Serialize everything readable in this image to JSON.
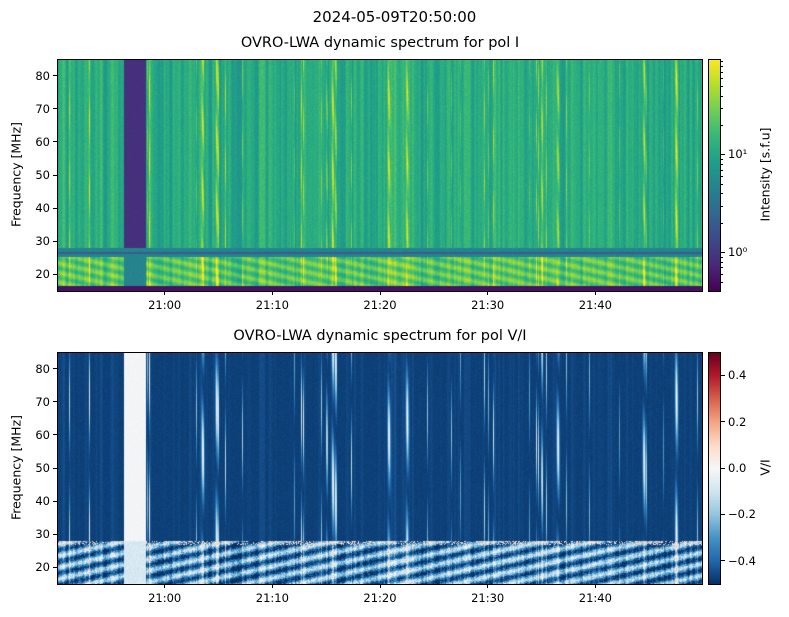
{
  "suptitle": "2024-05-09T20:50:00",
  "chart_data": [
    {
      "type": "heatmap",
      "title": "OVRO-LWA dynamic spectrum for pol I",
      "xlabel": "",
      "ylabel": "Frequency [MHz]",
      "x_range_minutes": [
        0,
        60
      ],
      "x_start": "20:50",
      "x_ticks": [
        {
          "value": 10,
          "label": "21:00"
        },
        {
          "value": 20,
          "label": "21:10"
        },
        {
          "value": 30,
          "label": "21:20"
        },
        {
          "value": 40,
          "label": "21:30"
        },
        {
          "value": 50,
          "label": "21:40"
        }
      ],
      "ylim": [
        15,
        85
      ],
      "y_ticks": [
        20,
        30,
        40,
        50,
        60,
        70,
        80
      ],
      "colorbar": {
        "label": "Intensity [s.f.u]",
        "scale": "log",
        "range": [
          0.4,
          95
        ],
        "ticks": [
          {
            "value": 1,
            "label": "10⁰"
          },
          {
            "value": 10,
            "label": "10¹"
          }
        ],
        "colormap": "viridis"
      },
      "data_gap_minutes": [
        6.2,
        8.2
      ],
      "burst_times_minutes": [
        13.5,
        14.8,
        25.6,
        30.8,
        32.5,
        46.5,
        54.5,
        57.5
      ],
      "rfi_bands_mhz": [
        [
          15,
          16.8
        ],
        [
          25.3,
          28.2
        ]
      ]
    },
    {
      "type": "heatmap",
      "title": "OVRO-LWA dynamic spectrum for pol V/I",
      "xlabel": "",
      "ylabel": "Frequency [MHz]",
      "x_range_minutes": [
        0,
        60
      ],
      "x_start": "20:50",
      "x_ticks": [
        {
          "value": 10,
          "label": "21:00"
        },
        {
          "value": 20,
          "label": "21:10"
        },
        {
          "value": 30,
          "label": "21:20"
        },
        {
          "value": 40,
          "label": "21:30"
        },
        {
          "value": 50,
          "label": "21:40"
        }
      ],
      "ylim": [
        15,
        85
      ],
      "y_ticks": [
        20,
        30,
        40,
        50,
        60,
        70,
        80
      ],
      "colorbar": {
        "label": "V/I",
        "scale": "linear",
        "range": [
          -0.5,
          0.5
        ],
        "ticks": [
          {
            "value": -0.4,
            "label": "−0.4"
          },
          {
            "value": -0.2,
            "label": "−0.2"
          },
          {
            "value": 0.0,
            "label": "0.0"
          },
          {
            "value": 0.2,
            "label": "0.2"
          },
          {
            "value": 0.4,
            "label": "0.4"
          }
        ],
        "colormap": "RdBu_r"
      },
      "data_gap_minutes": [
        6.2,
        8.2
      ],
      "burst_times_minutes": [
        13.5,
        14.8,
        25.6,
        30.8,
        32.5,
        46.5,
        54.5,
        57.5
      ],
      "background_v_over_i": -0.47
    }
  ]
}
